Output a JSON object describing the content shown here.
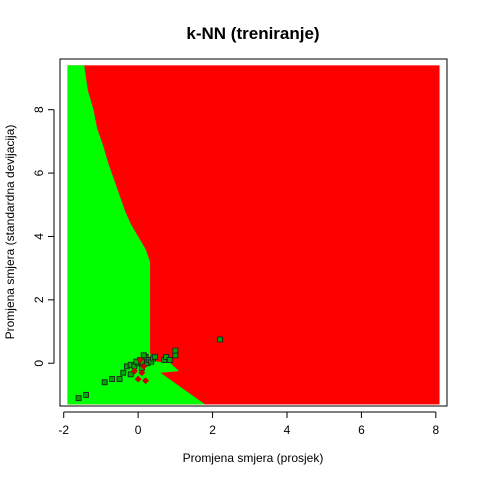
{
  "chart_data": {
    "type": "scatter",
    "title": "k-NN (treniranje)",
    "xlabel": "Promjena smjera (prosjek)",
    "ylabel": "Promjena smjera (standardna devijacija)",
    "xlim": [
      -2.1,
      8.3
    ],
    "ylim": [
      -1.35,
      9.6
    ],
    "x_ticks": [
      -2,
      0,
      2,
      4,
      6,
      8
    ],
    "y_ticks": [
      0,
      2,
      4,
      6,
      8
    ],
    "x_tick_labels": [
      "-2",
      "0",
      "2",
      "4",
      "6",
      "8"
    ],
    "y_tick_labels": [
      "0",
      "2",
      "4",
      "6",
      "8"
    ],
    "grid": false,
    "legend": "none",
    "colors": {
      "region_a": "#00ff00",
      "region_b": "#ff0000",
      "points_a": "#00aa00",
      "points_b": "#cc0000",
      "point_edge": "#222222"
    },
    "decision_regions": {
      "x_range": [
        -1.9,
        8.1
      ],
      "y_range": [
        -1.3,
        9.4
      ],
      "boundary": [
        [
          -1.45,
          9.4
        ],
        [
          -1.35,
          8.6
        ],
        [
          -1.2,
          8.0
        ],
        [
          -1.1,
          7.4
        ],
        [
          -0.95,
          6.9
        ],
        [
          -0.8,
          6.3
        ],
        [
          -0.65,
          5.8
        ],
        [
          -0.5,
          5.3
        ],
        [
          -0.35,
          4.8
        ],
        [
          -0.2,
          4.4
        ],
        [
          0.0,
          4.0
        ],
        [
          0.2,
          3.6
        ],
        [
          0.32,
          3.2
        ],
        [
          0.32,
          0.3
        ],
        [
          0.5,
          0.05
        ],
        [
          0.85,
          0.02
        ],
        [
          1.1,
          -0.25
        ],
        [
          0.6,
          -0.3
        ],
        [
          1.2,
          -0.8
        ],
        [
          1.8,
          -1.3
        ]
      ]
    },
    "series": [
      {
        "marker": "square",
        "points": [
          [
            -1.6,
            -1.1
          ],
          [
            -1.4,
            -1.0
          ],
          [
            -0.9,
            -0.6
          ],
          [
            -0.7,
            -0.5
          ],
          [
            -0.5,
            -0.5
          ],
          [
            -0.4,
            -0.3
          ],
          [
            -0.3,
            -0.1
          ],
          [
            -0.2,
            -0.05
          ],
          [
            -0.1,
            -0.1
          ],
          [
            -0.2,
            -0.35
          ],
          [
            0.0,
            0.0
          ],
          [
            0.05,
            0.1
          ],
          [
            0.1,
            -0.15
          ],
          [
            0.2,
            0.2
          ],
          [
            0.15,
            0.25
          ],
          [
            0.25,
            0.0
          ],
          [
            0.3,
            0.1
          ],
          [
            0.35,
            0.05
          ],
          [
            0.4,
            0.15
          ],
          [
            0.45,
            0.2
          ],
          [
            0.7,
            0.1
          ],
          [
            0.75,
            0.2
          ],
          [
            0.85,
            0.1
          ],
          [
            1.0,
            0.25
          ],
          [
            1.0,
            0.4
          ],
          [
            2.2,
            0.75
          ],
          [
            -0.05,
            0.05
          ],
          [
            0.1,
            0.05
          ]
        ]
      },
      {
        "marker": "diamond",
        "points": [
          [
            0.0,
            -0.5
          ],
          [
            0.2,
            -0.55
          ],
          [
            0.1,
            -0.3
          ],
          [
            -0.1,
            -0.25
          ],
          [
            0.15,
            -0.1
          ],
          [
            0.05,
            0.1
          ]
        ]
      }
    ]
  }
}
